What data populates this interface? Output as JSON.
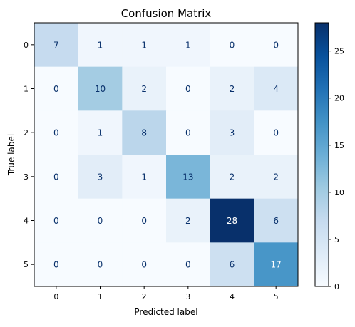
{
  "chart_data": {
    "type": "heatmap",
    "title": "Confusion Matrix",
    "xlabel": "Predicted label",
    "ylabel": "True label",
    "x_categories": [
      "0",
      "1",
      "2",
      "3",
      "4",
      "5"
    ],
    "y_categories": [
      "0",
      "1",
      "2",
      "3",
      "4",
      "5"
    ],
    "values": [
      [
        7,
        1,
        1,
        1,
        0,
        0
      ],
      [
        0,
        10,
        2,
        0,
        2,
        4
      ],
      [
        0,
        1,
        8,
        0,
        3,
        0
      ],
      [
        0,
        3,
        1,
        13,
        2,
        2
      ],
      [
        0,
        0,
        0,
        2,
        28,
        6
      ],
      [
        0,
        0,
        0,
        0,
        6,
        17
      ]
    ],
    "colormap": "Blues",
    "colorbar": {
      "range": [
        0,
        28
      ],
      "ticks": [
        0,
        5,
        10,
        15,
        20,
        25
      ]
    },
    "grid": false
  }
}
